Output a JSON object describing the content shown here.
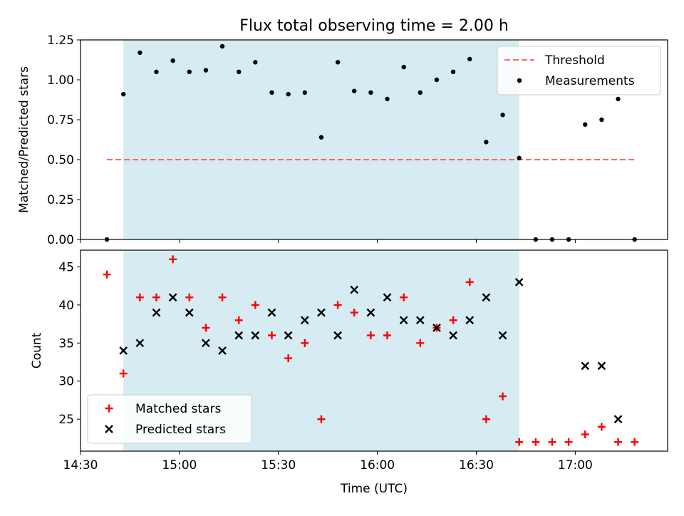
{
  "title": "Flux total observing time = 2.00 h",
  "colors": {
    "highlight": "#add8e6",
    "threshold": "#ff6666",
    "matched": "#ff0000",
    "predicted": "#000000",
    "measurement": "#000000"
  },
  "chart_data": [
    {
      "type": "scatter",
      "panel": "top",
      "ylabel": "Matched/Predicted stars",
      "ylim": [
        0,
        1.25
      ],
      "yticks": [
        "0.00",
        "0.25",
        "0.50",
        "0.75",
        "1.00",
        "1.25"
      ],
      "ytick_values": [
        0,
        0.25,
        0.5,
        0.75,
        1.0,
        1.25
      ],
      "xlim": [
        "14:30",
        "17:28"
      ],
      "highlight_span": [
        "14:43",
        "16:43"
      ],
      "threshold": {
        "name": "Threshold",
        "value": 0.5,
        "x_range": [
          "14:38",
          "17:18"
        ]
      },
      "legend": {
        "placement": "top-right",
        "entries": [
          "Threshold",
          "Measurements"
        ]
      },
      "series": [
        {
          "name": "Measurements",
          "x": [
            "14:38",
            "14:43",
            "14:48",
            "14:53",
            "14:58",
            "15:03",
            "15:08",
            "15:13",
            "15:18",
            "15:23",
            "15:28",
            "15:33",
            "15:38",
            "15:43",
            "15:48",
            "15:53",
            "15:58",
            "16:03",
            "16:08",
            "16:13",
            "16:18",
            "16:23",
            "16:28",
            "16:33",
            "16:38",
            "16:43",
            "16:48",
            "16:53",
            "16:58",
            "17:03",
            "17:08",
            "17:13",
            "17:18"
          ],
          "y": [
            0.0,
            0.91,
            1.17,
            1.05,
            1.12,
            1.05,
            1.06,
            1.21,
            1.05,
            1.11,
            0.92,
            0.91,
            0.92,
            0.64,
            1.11,
            0.93,
            0.92,
            0.88,
            1.08,
            0.92,
            1.0,
            1.05,
            1.13,
            0.61,
            0.78,
            0.51,
            0.0,
            0.0,
            0.0,
            0.72,
            0.75,
            0.88,
            0.0
          ]
        }
      ]
    },
    {
      "type": "scatter",
      "panel": "bottom",
      "xlabel": "Time (UTC)",
      "ylabel": "Count",
      "ylim": [
        20.8,
        47.2
      ],
      "yticks": [
        "25",
        "30",
        "35",
        "40",
        "45"
      ],
      "ytick_values": [
        25,
        30,
        35,
        40,
        45
      ],
      "xlim": [
        "14:30",
        "17:28"
      ],
      "xticks": [
        "14:30",
        "15:00",
        "15:30",
        "16:00",
        "16:30",
        "17:00"
      ],
      "highlight_span": [
        "14:43",
        "16:43"
      ],
      "legend": {
        "placement": "bottom-left",
        "entries": [
          "Matched stars",
          "Predicted stars"
        ]
      },
      "series": [
        {
          "name": "Matched stars",
          "x": [
            "14:38",
            "14:43",
            "14:48",
            "14:53",
            "14:58",
            "15:03",
            "15:08",
            "15:13",
            "15:18",
            "15:23",
            "15:28",
            "15:33",
            "15:38",
            "15:43",
            "15:48",
            "15:53",
            "15:58",
            "16:03",
            "16:08",
            "16:13",
            "16:18",
            "16:23",
            "16:28",
            "16:33",
            "16:38",
            "16:43",
            "16:48",
            "16:53",
            "16:58",
            "17:03",
            "17:08",
            "17:13",
            "17:18"
          ],
          "y": [
            44,
            31,
            41,
            41,
            46,
            41,
            37,
            41,
            38,
            40,
            36,
            33,
            35,
            25,
            40,
            39,
            36,
            36,
            41,
            35,
            37,
            38,
            43,
            25,
            28,
            22,
            22,
            22,
            22,
            23,
            24,
            22,
            22
          ]
        },
        {
          "name": "Predicted stars",
          "x": [
            "14:43",
            "14:48",
            "14:53",
            "14:58",
            "15:03",
            "15:08",
            "15:13",
            "15:18",
            "15:23",
            "15:28",
            "15:33",
            "15:38",
            "15:43",
            "15:48",
            "15:53",
            "15:58",
            "16:03",
            "16:08",
            "16:13",
            "16:18",
            "16:23",
            "16:28",
            "16:33",
            "16:38",
            "16:43",
            "17:03",
            "17:08",
            "17:13"
          ],
          "y": [
            34,
            35,
            39,
            41,
            39,
            35,
            34,
            36,
            36,
            39,
            36,
            38,
            39,
            36,
            42,
            39,
            41,
            38,
            38,
            37,
            36,
            38,
            41,
            36,
            43,
            32,
            32,
            25
          ]
        }
      ]
    }
  ]
}
